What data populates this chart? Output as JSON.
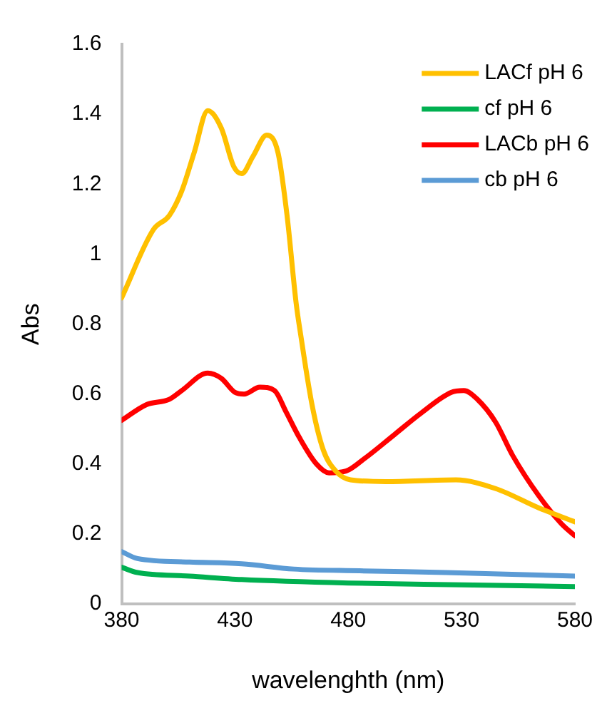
{
  "chart_data": {
    "type": "line",
    "xlabel": "wavelenghth (nm)",
    "ylabel": "Abs",
    "xlim": [
      380,
      580
    ],
    "xticks": [
      380,
      430,
      480,
      530,
      580
    ],
    "ylim": [
      0,
      1.6
    ],
    "yticks": [
      0,
      0.2,
      0.4,
      0.6,
      0.8,
      1,
      1.2,
      1.4,
      1.6
    ],
    "grid": false,
    "legend": "top right",
    "marker": "none",
    "line_style": "solid",
    "series": [
      {
        "name": "LACf pH 6",
        "color": "#ffc000",
        "x": [
          380,
          394,
          401,
          406.5,
          412,
          418,
          424,
          429.5,
          433,
          438,
          444,
          449,
          453,
          457,
          459,
          464,
          469,
          474.5,
          481,
          496.5,
          527.5,
          545,
          564,
          580
        ],
        "values": [
          0.875,
          1.07,
          1.11,
          1.18,
          1.29,
          1.41,
          1.36,
          1.25,
          1.23,
          1.28,
          1.34,
          1.29,
          1.11,
          0.86,
          0.77,
          0.57,
          0.44,
          0.38,
          0.355,
          0.35,
          0.355,
          0.33,
          0.275,
          0.235
        ]
      },
      {
        "name": "cf pH 6",
        "color": "#00b050",
        "x": [
          380,
          387,
          410,
          433,
          480,
          530,
          580
        ],
        "values": [
          0.105,
          0.09,
          0.08,
          0.07,
          0.06,
          0.055,
          0.05
        ]
      },
      {
        "name": "LACb pH 6",
        "color": "#ff0000",
        "x": [
          380,
          391,
          401,
          406.5,
          418,
          424,
          430,
          434,
          441,
          447.5,
          452.5,
          458.5,
          466,
          471.5,
          479,
          487,
          500.5,
          512,
          525.5,
          531,
          537,
          545,
          552.5,
          564,
          574,
          580
        ],
        "values": [
          0.525,
          0.57,
          0.585,
          0.61,
          0.66,
          0.645,
          0.605,
          0.6,
          0.62,
          0.61,
          0.55,
          0.475,
          0.4,
          0.375,
          0.38,
          0.415,
          0.485,
          0.545,
          0.605,
          0.61,
          0.585,
          0.52,
          0.425,
          0.31,
          0.23,
          0.195
        ]
      },
      {
        "name": "cb pH 6",
        "color": "#5b9bd5",
        "x": [
          380,
          387,
          410,
          433,
          456,
          485,
          523,
          580
        ],
        "values": [
          0.15,
          0.13,
          0.12,
          0.115,
          0.1,
          0.095,
          0.09,
          0.08
        ]
      }
    ]
  }
}
